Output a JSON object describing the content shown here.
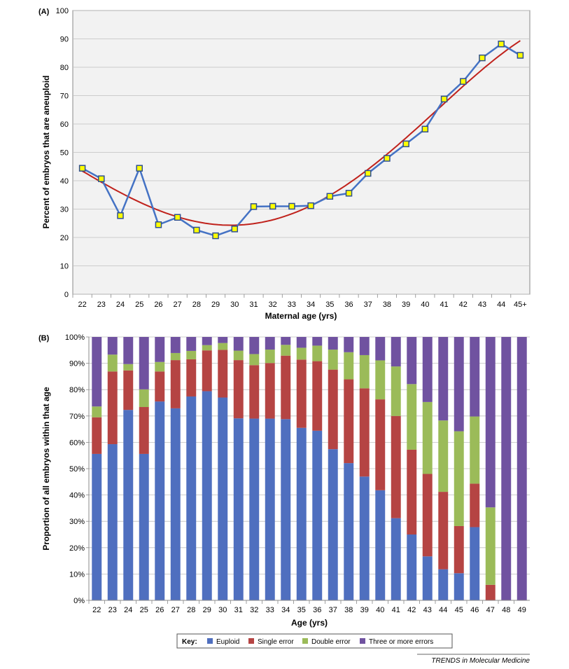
{
  "panel_a": {
    "label": "(A)",
    "ylabel": "Percent of embryos that are aneuploid",
    "xlabel": "Maternal age (yrs)"
  },
  "panel_b": {
    "label": "(B)",
    "ylabel": "Proportion of all embryos within that age",
    "xlabel": "Age (yrs)"
  },
  "key": {
    "title": "Key:",
    "items": [
      "Euploid",
      "Single error",
      "Double error",
      "Three or more errors"
    ]
  },
  "credit": "TRENDS in Molecular Medicine",
  "colors": {
    "line": "#4472c4",
    "trend": "#c0221c",
    "marker_fill": "#ffff00",
    "marker_edge": "#2f4f8f",
    "euploid": "#4f6fbf",
    "single": "#b54443",
    "double": "#9bbb59",
    "three": "#7052a0",
    "grid": "#bfbfbf",
    "plot_bg": "#f2f2f2"
  },
  "chart_data": [
    {
      "type": "line",
      "title": "",
      "xlabel": "Maternal age (yrs)",
      "ylabel": "Percent of embryos that are aneuploid",
      "categories": [
        "22",
        "23",
        "24",
        "25",
        "26",
        "27",
        "28",
        "29",
        "30",
        "31",
        "32",
        "33",
        "34",
        "35",
        "36",
        "37",
        "38",
        "39",
        "40",
        "41",
        "42",
        "43",
        "44",
        "45+"
      ],
      "ylim": [
        0,
        100
      ],
      "yticks": [
        0,
        10,
        20,
        30,
        40,
        50,
        60,
        70,
        80,
        90,
        100
      ],
      "grid": true,
      "series": [
        {
          "values": [
            44.4,
            40.7,
            27.7,
            44.4,
            24.5,
            27.1,
            22.6,
            20.6,
            23.0,
            30.9,
            31.0,
            31.0,
            31.2,
            34.5,
            35.6,
            42.6,
            47.9,
            53.0,
            58.2,
            68.8,
            75.0,
            83.3,
            88.2,
            84.2
          ]
        }
      ],
      "trendline": {
        "type": "polynomial"
      }
    },
    {
      "type": "bar",
      "stacked": true,
      "title": "",
      "xlabel": "Age (yrs)",
      "ylabel": "Proportion of all embryos within that age",
      "categories": [
        "22",
        "23",
        "24",
        "25",
        "26",
        "27",
        "28",
        "29",
        "30",
        "31",
        "32",
        "33",
        "34",
        "35",
        "36",
        "37",
        "38",
        "39",
        "40",
        "41",
        "42",
        "43",
        "44",
        "45",
        "46",
        "47",
        "48",
        "49"
      ],
      "ylim": [
        0,
        100
      ],
      "yticks": [
        "0%",
        "10%",
        "20%",
        "30%",
        "40%",
        "50%",
        "60%",
        "70%",
        "80%",
        "90%",
        "100%"
      ],
      "grid": true,
      "legend": "bottom",
      "series": [
        {
          "name": "Euploid",
          "values": [
            55.6,
            59.3,
            72.3,
            55.6,
            75.5,
            72.9,
            77.4,
            79.4,
            77.0,
            69.1,
            69.0,
            69.0,
            68.8,
            65.5,
            64.4,
            57.4,
            52.1,
            47.0,
            41.8,
            31.2,
            25.0,
            16.7,
            11.8,
            10.3,
            27.8,
            0,
            0,
            0
          ]
        },
        {
          "name": "Single error",
          "values": [
            13.9,
            27.6,
            15.0,
            17.8,
            11.4,
            18.3,
            14.1,
            15.5,
            18.1,
            22.1,
            20.3,
            21.1,
            24.1,
            25.9,
            26.4,
            30.2,
            31.8,
            33.5,
            34.5,
            38.8,
            32.2,
            31.3,
            29.4,
            17.9,
            16.5,
            5.9,
            0,
            0
          ]
        },
        {
          "name": "Double error",
          "values": [
            4.1,
            6.4,
            2.4,
            6.7,
            3.6,
            2.7,
            3.2,
            2.0,
            2.6,
            3.6,
            4.2,
            5.1,
            4.1,
            4.5,
            5.9,
            7.6,
            10.3,
            12.6,
            14.8,
            18.8,
            24.9,
            27.3,
            27.1,
            36.0,
            25.5,
            29.4,
            0,
            0
          ]
        },
        {
          "name": "Three or more errors",
          "values": [
            26.4,
            6.7,
            10.3,
            19.9,
            9.5,
            6.1,
            5.3,
            3.1,
            2.3,
            5.2,
            6.5,
            4.8,
            3.0,
            4.1,
            3.3,
            4.8,
            5.8,
            6.9,
            8.9,
            11.2,
            17.9,
            24.7,
            31.7,
            35.8,
            30.2,
            64.7,
            100,
            100
          ]
        }
      ]
    }
  ]
}
